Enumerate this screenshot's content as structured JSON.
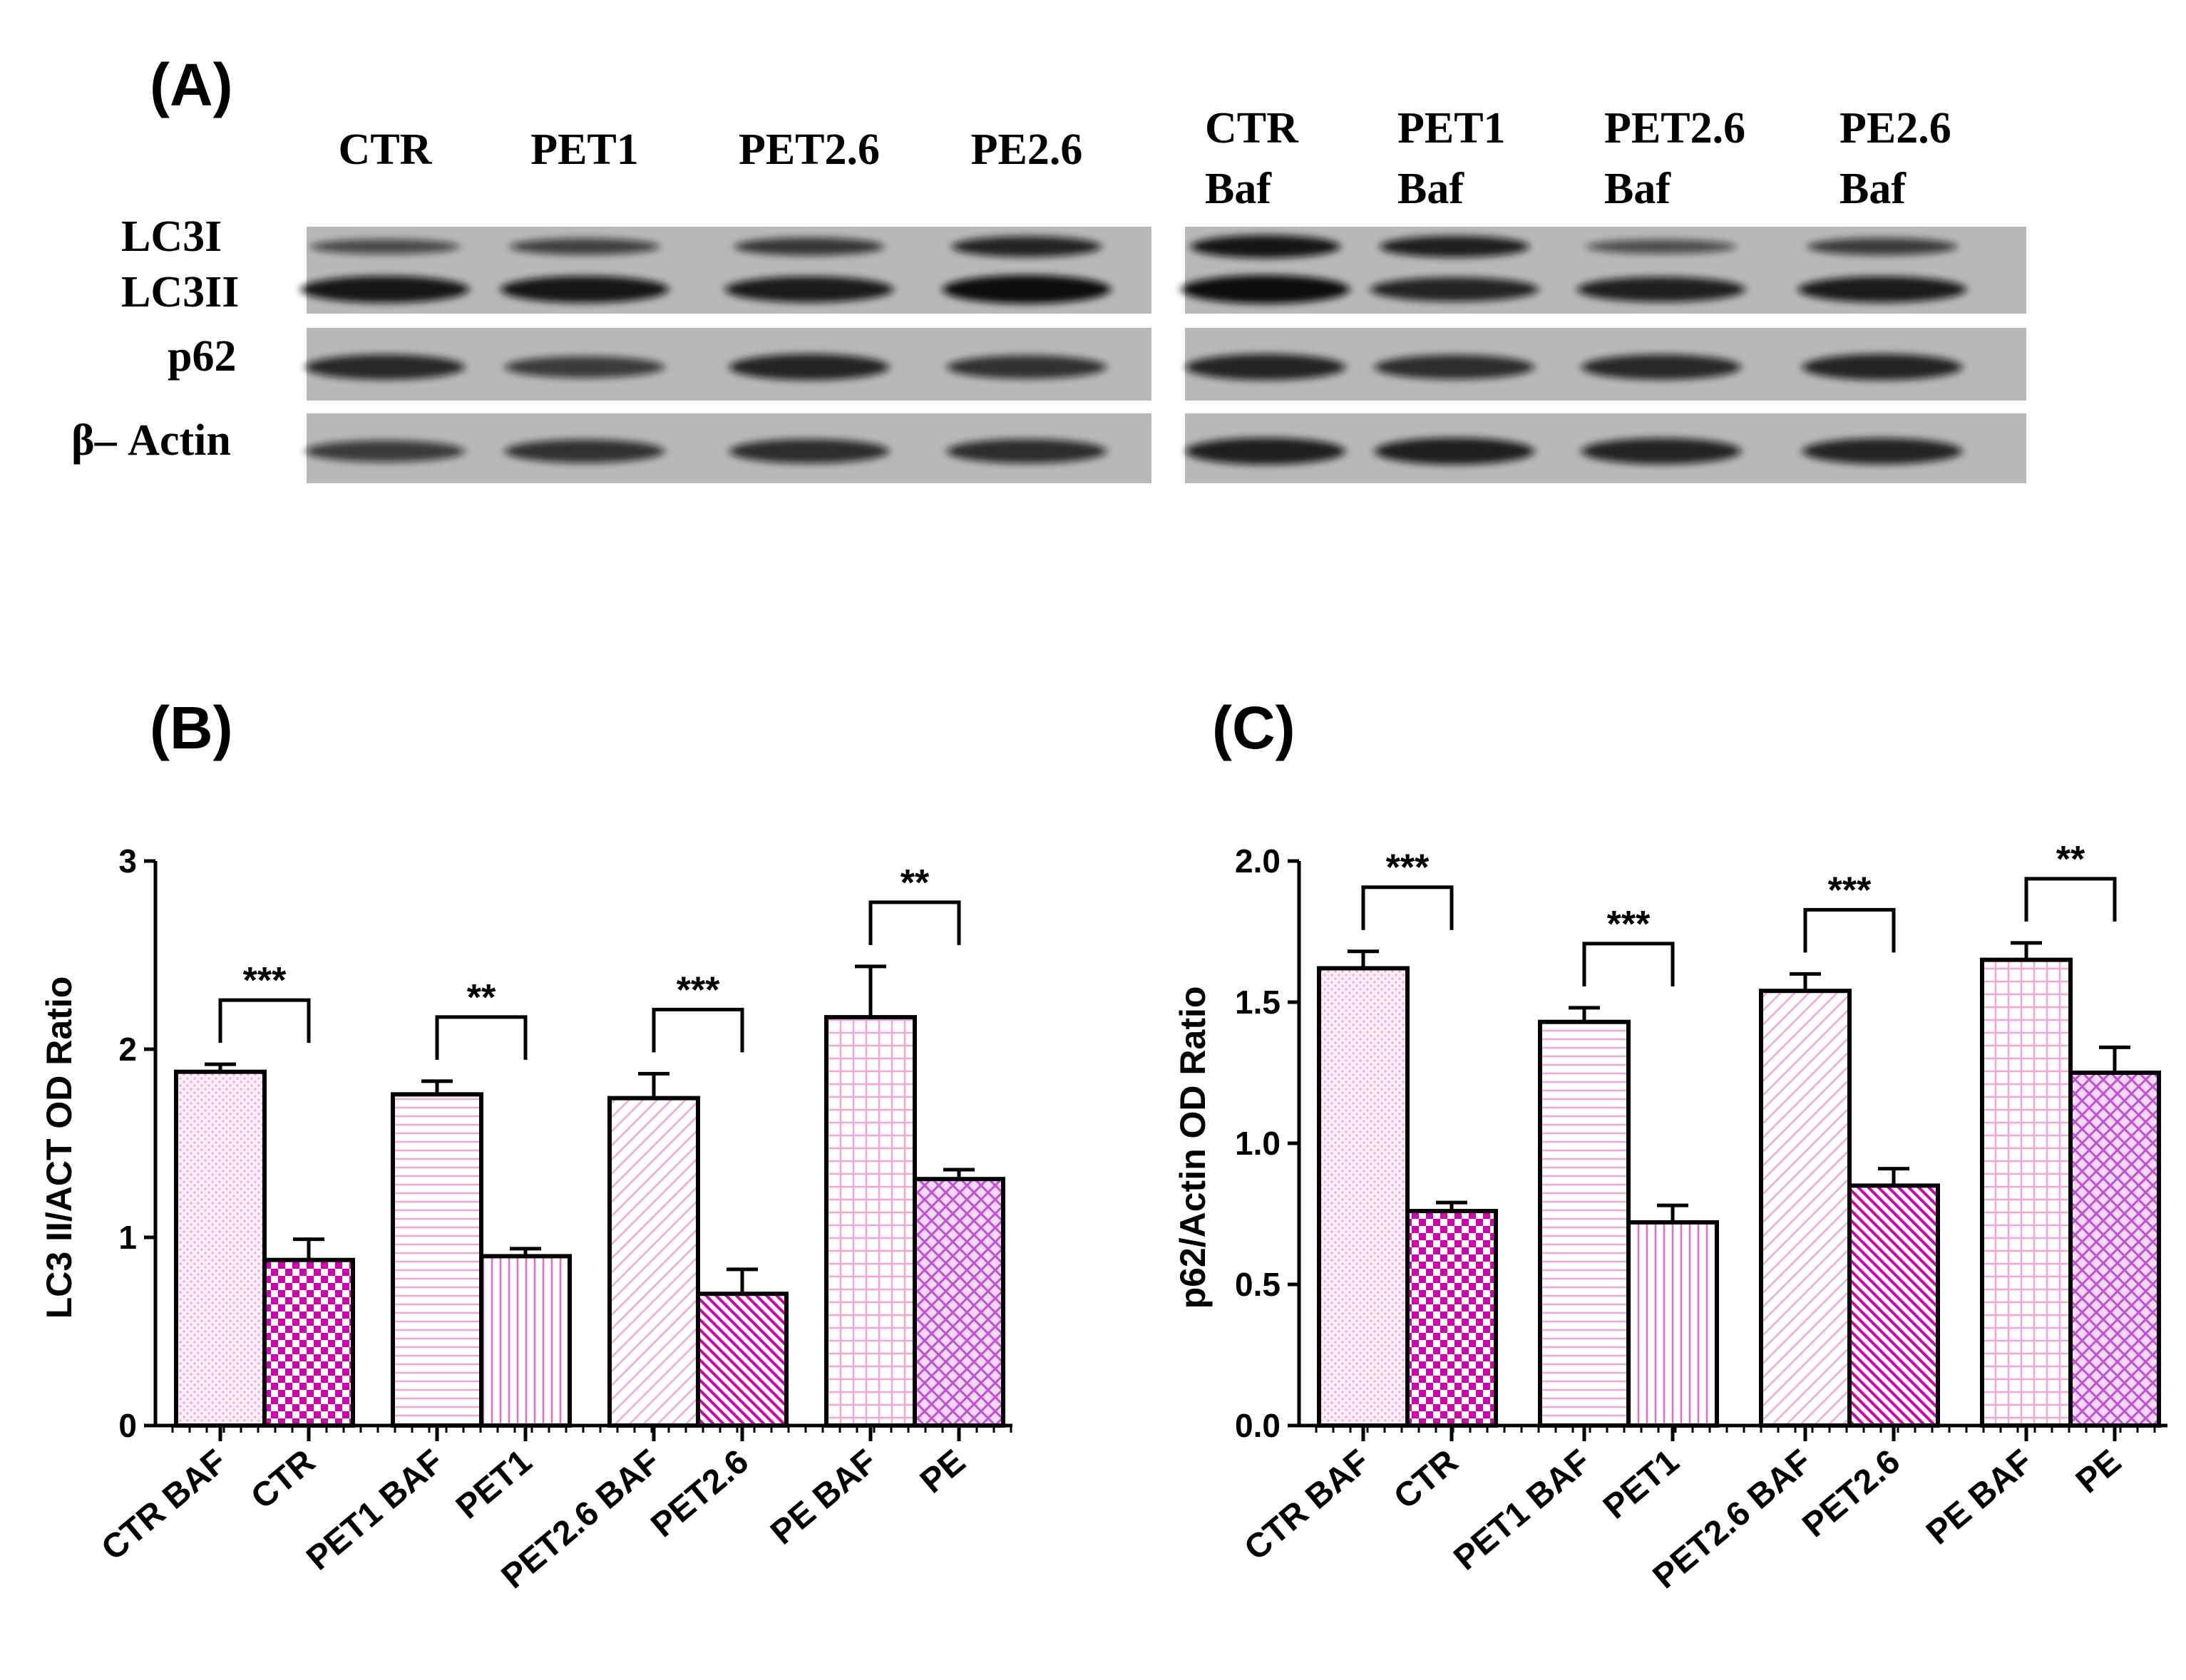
{
  "panel_a": {
    "label": "(A)",
    "left_lanes": [
      "CTR",
      "PET1",
      "PET2.6",
      "PE2.6"
    ],
    "right_lanes": [
      {
        "line1": "CTR",
        "line2": "Baf"
      },
      {
        "line1": "PET1",
        "line2": "Baf"
      },
      {
        "line1": "PET2.6",
        "line2": "Baf"
      },
      {
        "line1": "PE2.6",
        "line2": "Baf"
      }
    ],
    "rows": [
      "LC3I",
      "LC3II",
      "p62",
      "β– Actin"
    ],
    "band_intensity": {
      "LC3I": [
        0.45,
        0.55,
        0.65,
        0.85,
        1.0,
        0.9,
        0.4,
        0.6
      ],
      "LC3II": [
        0.9,
        0.9,
        0.85,
        1.0,
        1.0,
        0.75,
        0.8,
        0.85
      ],
      "p62": [
        0.8,
        0.6,
        0.85,
        0.7,
        0.85,
        0.75,
        0.8,
        0.85
      ],
      "actin": [
        0.6,
        0.7,
        0.75,
        0.75,
        0.9,
        0.9,
        0.85,
        0.85
      ]
    }
  },
  "colors": {
    "bar_stroke": "#000000",
    "pink_light": "#f2a6d8",
    "pink_medium": "#e76ac4",
    "magenta": "#d100b0",
    "violet": "#c050d6",
    "blot_bg": "#b8b8b8",
    "band": "#111111"
  },
  "chart_data": [
    {
      "panel": "(B)",
      "type": "bar",
      "ylabel": "LC3 II/ACT OD Ratio",
      "ylim": [
        0,
        3
      ],
      "yticks": [
        "0",
        "1",
        "2",
        "3"
      ],
      "ytick_values": [
        0,
        1,
        2,
        3
      ],
      "categories": [
        "CTR BAF",
        "CTR",
        "PET1 BAF",
        "PET1",
        "PET2.6 BAF",
        "PET2.6",
        "PE BAF",
        "PE"
      ],
      "values": [
        1.88,
        0.88,
        1.76,
        0.9,
        1.74,
        0.7,
        2.17,
        1.31
      ],
      "errors": [
        0.04,
        0.11,
        0.07,
        0.04,
        0.13,
        0.13,
        0.27,
        0.05
      ],
      "patterns": [
        "dots",
        "checker",
        "hlines",
        "vlines",
        "diag-fine",
        "diag-dense",
        "grid",
        "crosshatch"
      ],
      "significance": [
        "***",
        "**",
        "***",
        "**"
      ]
    },
    {
      "panel": "(C)",
      "type": "bar",
      "ylabel": "p62/Actin OD Ratio",
      "ylim": [
        0,
        2
      ],
      "yticks": [
        "0.0",
        "0.5",
        "1.0",
        "1.5",
        "2.0"
      ],
      "ytick_values": [
        0,
        0.5,
        1.0,
        1.5,
        2.0
      ],
      "categories": [
        "CTR BAF",
        "CTR",
        "PET1 BAF",
        "PET1",
        "PET2.6 BAF",
        "PET2.6",
        "PE BAF",
        "PE"
      ],
      "values": [
        1.62,
        0.76,
        1.43,
        0.72,
        1.54,
        0.85,
        1.65,
        1.25
      ],
      "errors": [
        0.06,
        0.03,
        0.05,
        0.06,
        0.06,
        0.06,
        0.06,
        0.09
      ],
      "patterns": [
        "dots",
        "checker",
        "hlines",
        "vlines",
        "diag-fine",
        "diag-dense",
        "grid",
        "crosshatch"
      ],
      "significance": [
        "***",
        "***",
        "***",
        "**"
      ]
    }
  ]
}
